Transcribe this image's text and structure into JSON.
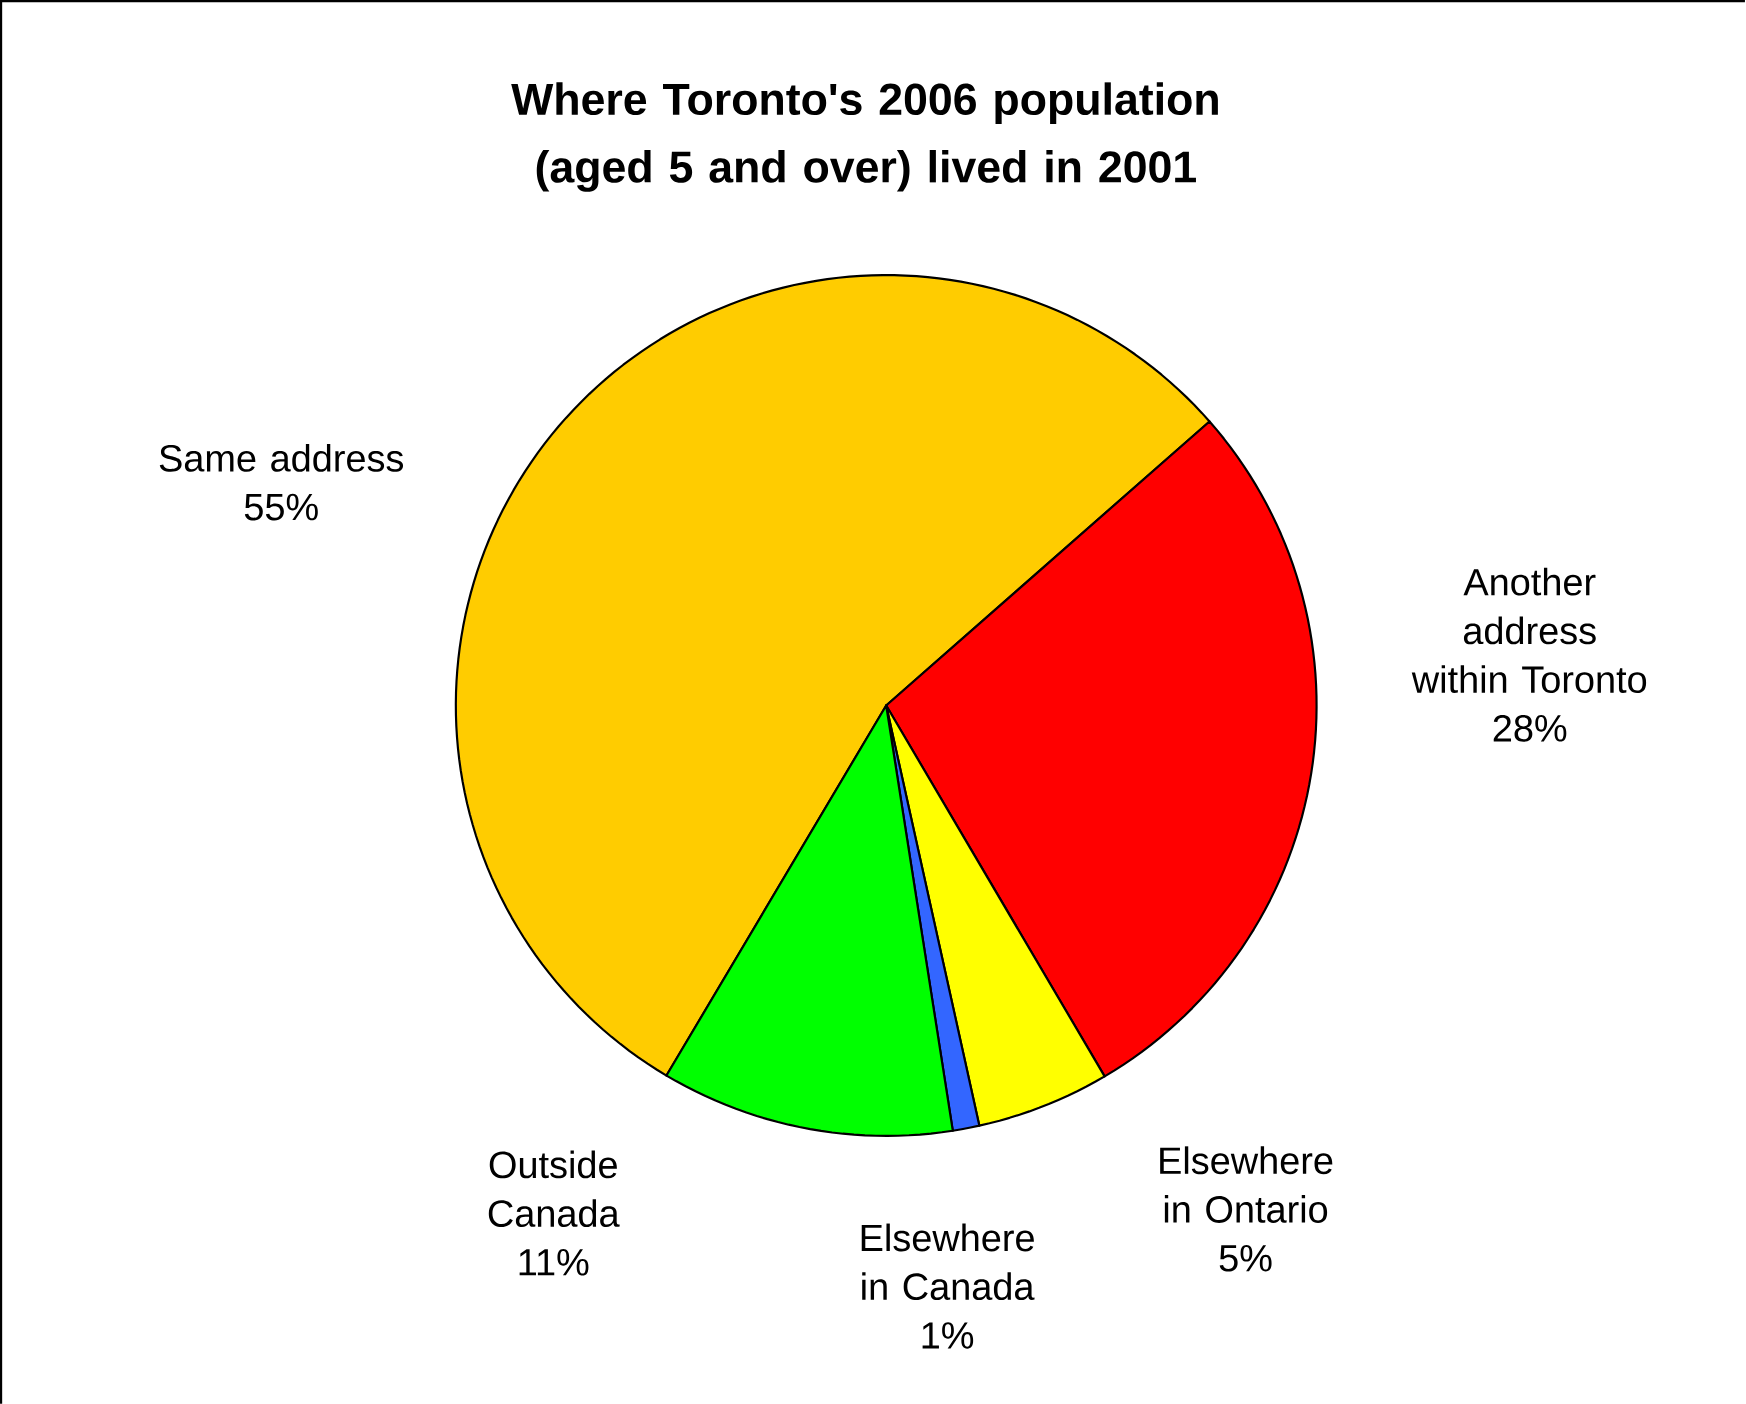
{
  "chart_data": {
    "type": "pie",
    "title": "Where Toronto's 2006 population (aged 5 and over) lived in 2001",
    "categories": [
      "Same address",
      "Another address within Toronto",
      "Elsewhere in Ontario",
      "Elsewhere in Canada",
      "Outside Canada"
    ],
    "values": [
      55,
      28,
      5,
      1,
      11
    ],
    "value_labels": [
      "55%",
      "28%",
      "5%",
      "1%",
      "11%"
    ],
    "colors": [
      "#ffcc00",
      "#ff0000",
      "#ffff00",
      "#3366ff",
      "#00ff00"
    ]
  }
}
